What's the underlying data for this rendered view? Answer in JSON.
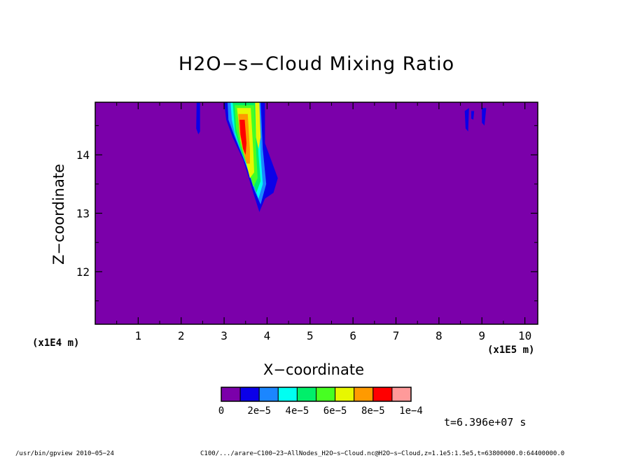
{
  "chart_data": {
    "type": "heatmap",
    "title": "H2O−s−Cloud Mixing Ratio",
    "xlabel": "X−coordinate",
    "ylabel": "Z−coordinate",
    "x_unit": "(x1E5 m)",
    "y_unit": "(x1E4 m)",
    "x_ticks": [
      "1",
      "2",
      "3",
      "4",
      "5",
      "6",
      "7",
      "8",
      "9",
      "10"
    ],
    "y_ticks": [
      "12",
      "13",
      "14"
    ],
    "xlim": [
      0,
      10.3
    ],
    "ylim": [
      11.1,
      14.9
    ],
    "colorbar": {
      "labels": [
        "0",
        "2e−5",
        "4e−5",
        "6e−5",
        "8e−5",
        "1e−4"
      ],
      "levels": [
        0,
        1e-05,
        2e-05,
        3e-05,
        4e-05,
        5e-05,
        6e-05,
        7e-05,
        8e-05,
        9e-05,
        0.0001
      ],
      "colors": [
        "#7b00aa",
        "#0b00e8",
        "#1b86ff",
        "#00fff2",
        "#00ef6a",
        "#47ff22",
        "#e7f700",
        "#ff9a00",
        "#ff0000",
        "#ff9a9a"
      ]
    },
    "background_color": "#7b00aa",
    "grid": false
  },
  "annotations": {
    "time": "t=6.396e+07 s"
  },
  "footer": {
    "program": "/usr/bin/gpview   2010−05−24",
    "source": "C100/.../arare−C100−23−AllNodes_H2O−s−Cloud.nc@H2O−s−Cloud,z=1.1e5:1.5e5,t=63800000.0:64400000.0"
  }
}
